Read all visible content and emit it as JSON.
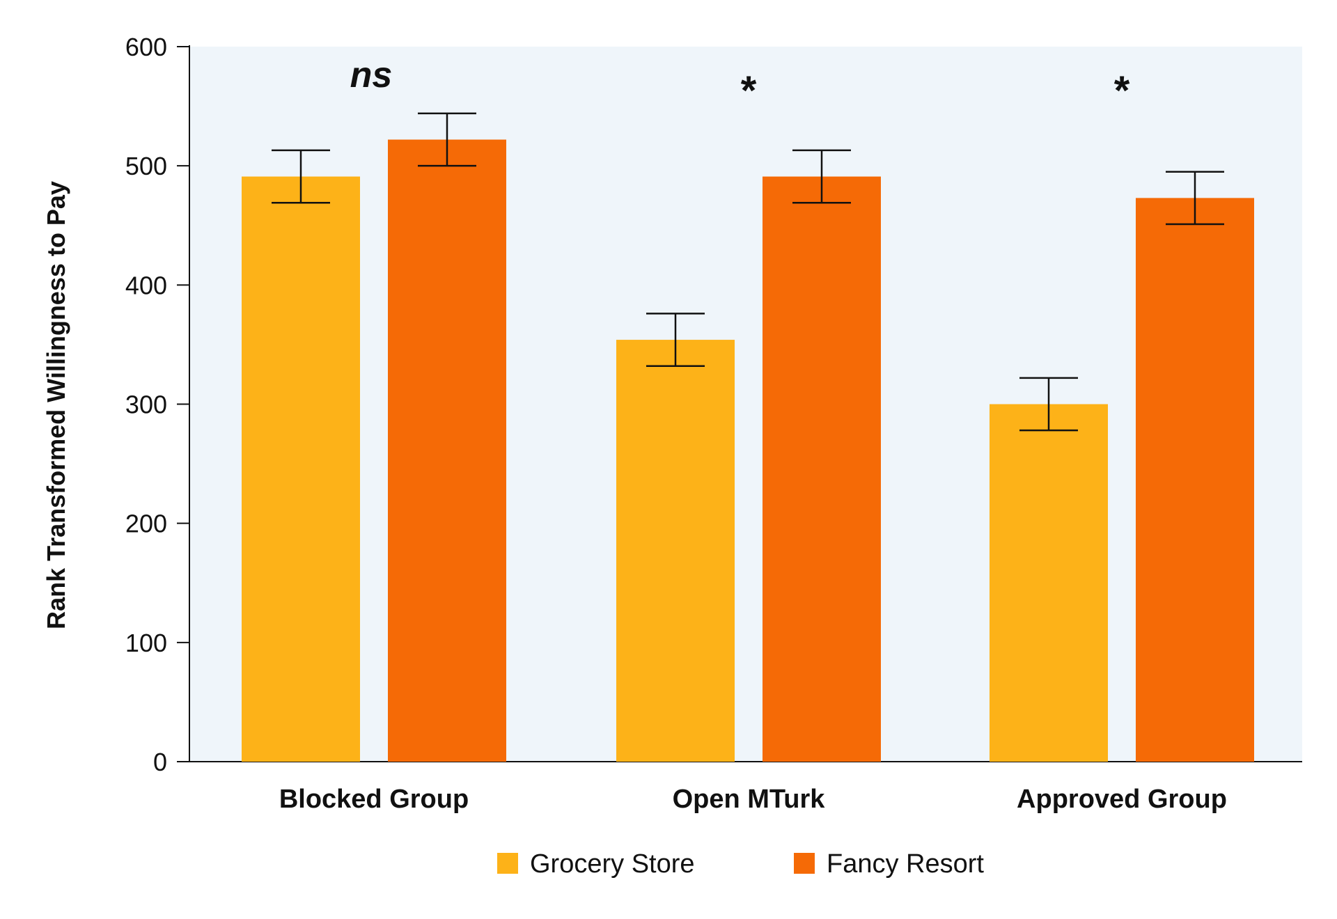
{
  "chart_data": {
    "type": "bar",
    "title": "",
    "xlabel": "",
    "ylabel": "Rank Transformed Willingness to Pay",
    "ylim": [
      0,
      600
    ],
    "yticks": [
      0,
      100,
      200,
      300,
      400,
      500,
      600
    ],
    "categories": [
      "Blocked Group",
      "Open MTurk",
      "Approved Group"
    ],
    "series": [
      {
        "name": "Grocery Store",
        "color": "#FDB218",
        "values": [
          491,
          354,
          300
        ],
        "error": [
          22,
          22,
          22
        ]
      },
      {
        "name": "Fancy Resort",
        "color": "#F56A06",
        "values": [
          522,
          491,
          473
        ],
        "error": [
          22,
          22,
          22
        ]
      }
    ],
    "annotations": [
      "ns",
      "*",
      "*"
    ],
    "grid": false,
    "plot_background": "#EFF5FA",
    "legend_position": "bottom-center"
  }
}
